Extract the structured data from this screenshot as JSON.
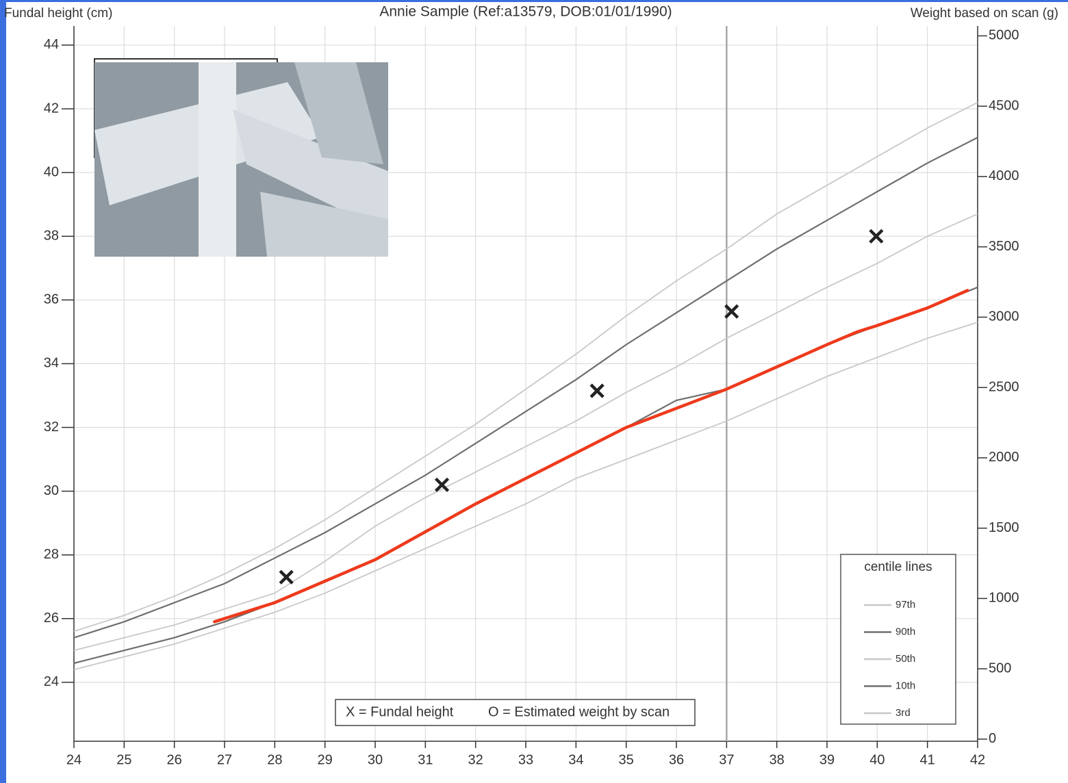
{
  "chart_data": {
    "type": "line",
    "title": "Annie Sample (Ref:a13579, DOB:01/01/1990)",
    "y_label": "Fundal height (cm)",
    "y2_label": "Weight based on scan (g)",
    "xlim": [
      24,
      42
    ],
    "xticks": [
      24,
      25,
      26,
      27,
      28,
      29,
      30,
      31,
      32,
      33,
      34,
      35,
      36,
      37,
      38,
      39,
      40,
      41,
      42
    ],
    "ylim": [
      22.15,
      44.6
    ],
    "yticks": [
      24,
      26,
      28,
      30,
      32,
      34,
      36,
      38,
      40,
      42,
      44
    ],
    "y2lim": [
      -15,
      5070
    ],
    "y2ticks": [
      0,
      500,
      1000,
      1500,
      2000,
      2500,
      3000,
      3500,
      4000,
      4500,
      5000
    ],
    "grid": true,
    "reference_line_x": 37,
    "legend_title": "centile lines",
    "x": [
      24,
      25,
      26,
      27,
      28,
      29,
      30,
      31,
      32,
      33,
      34,
      35,
      36,
      37,
      38,
      39,
      40,
      41,
      42
    ],
    "series": [
      {
        "name": "97th",
        "color": "#c8c8c8",
        "values": [
          25.6,
          26.1,
          26.7,
          27.4,
          28.2,
          29.1,
          30.1,
          31.1,
          32.1,
          33.2,
          34.3,
          35.5,
          36.6,
          37.6,
          38.7,
          39.6,
          40.5,
          41.4,
          42.2
        ]
      },
      {
        "name": "90th",
        "color": "#6e6e6e",
        "values": [
          25.4,
          25.9,
          26.5,
          27.1,
          27.9,
          28.7,
          29.6,
          30.5,
          31.5,
          32.5,
          33.5,
          34.6,
          35.6,
          36.6,
          37.6,
          38.5,
          39.4,
          40.3,
          41.1
        ]
      },
      {
        "name": "50th",
        "color": "#c8c8c8",
        "values": [
          25.0,
          25.4,
          25.8,
          26.3,
          26.8,
          27.8,
          28.9,
          29.8,
          30.6,
          31.4,
          32.2,
          33.1,
          33.9,
          34.8,
          35.6,
          36.4,
          37.15,
          38.0,
          38.7
        ]
      },
      {
        "name": "10th",
        "color": "#6e6e6e",
        "values": [
          24.6,
          25.0,
          25.4,
          25.9,
          26.5,
          27.2,
          27.85,
          28.7,
          29.6,
          30.4,
          31.2,
          32.0,
          32.85,
          33.2,
          33.9,
          34.6,
          35.2,
          35.75,
          36.4
        ]
      },
      {
        "name": "3rd",
        "color": "#c8c8c8",
        "values": [
          24.4,
          24.8,
          25.2,
          25.7,
          26.2,
          26.8,
          27.5,
          28.2,
          28.9,
          29.6,
          30.4,
          31.0,
          31.6,
          32.2,
          32.9,
          33.6,
          34.2,
          34.8,
          35.3
        ]
      }
    ],
    "highlight_line": {
      "color": "#ee3a1c",
      "x": [
        26.8,
        28,
        30,
        32,
        34,
        35,
        37,
        38,
        39,
        39.6,
        40,
        41,
        41.8
      ],
      "values": [
        25.9,
        26.5,
        27.85,
        29.6,
        31.2,
        32.0,
        33.2,
        33.9,
        34.6,
        35.0,
        35.2,
        35.75,
        36.3
      ]
    },
    "fundal_points": {
      "color": "#222222",
      "x": [
        28.23,
        31.33,
        34.42,
        37.1,
        39.98
      ],
      "values": [
        27.3,
        30.2,
        33.15,
        35.64,
        38.0
      ]
    },
    "key": [
      "X = Fundal height",
      "O = Estimated weight by scan"
    ]
  }
}
